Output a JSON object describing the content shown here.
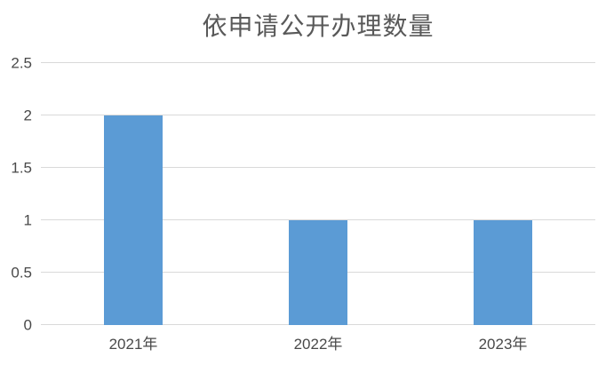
{
  "chart_data": {
    "type": "bar",
    "title": "依申请公开办理数量",
    "categories": [
      "2021年",
      "2022年",
      "2023年"
    ],
    "values": [
      2,
      1,
      1
    ],
    "xlabel": "",
    "ylabel": "",
    "ylim": [
      0,
      2.5
    ],
    "yticks": [
      0,
      0.5,
      1,
      1.5,
      2,
      2.5
    ],
    "ytick_labels": [
      "0",
      "0.5",
      "1",
      "1.5",
      "2",
      "2.5"
    ],
    "grid": "horizontal gridlines on",
    "legend": "none",
    "colors": {
      "bar": "#5b9bd5",
      "gridline": "#d9d9d9",
      "axis_line": "#d9d9d9",
      "tick_text": "#494949",
      "title_text": "#595959",
      "background": "#ffffff"
    }
  }
}
